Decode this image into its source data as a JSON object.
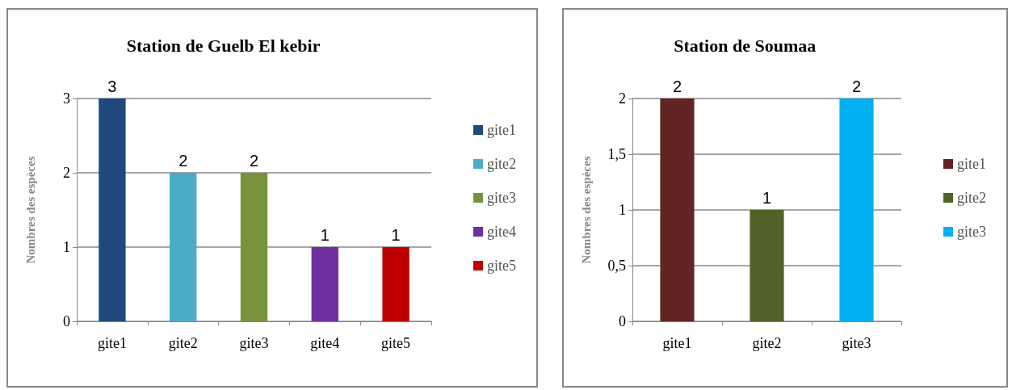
{
  "chart_data": [
    {
      "type": "bar",
      "title": "Station de Guelb El kebir",
      "ylabel": "Nombres des espèces",
      "categories": [
        "gite1",
        "gite2",
        "gite3",
        "gite4",
        "gite5"
      ],
      "series": [
        {
          "name": "gite1",
          "color": "#1f497d",
          "values": [
            3,
            null,
            null,
            null,
            null
          ]
        },
        {
          "name": "gite2",
          "color": "#4bacc6",
          "values": [
            null,
            2,
            null,
            null,
            null
          ]
        },
        {
          "name": "gite3",
          "color": "#77933c",
          "values": [
            null,
            null,
            2,
            null,
            null
          ]
        },
        {
          "name": "gite4",
          "color": "#7030a0",
          "values": [
            null,
            null,
            null,
            1,
            null
          ]
        },
        {
          "name": "gite5",
          "color": "#c00000",
          "values": [
            null,
            null,
            null,
            null,
            1
          ]
        }
      ],
      "ylim": [
        0,
        3
      ],
      "yticks": [
        0,
        1,
        2,
        3
      ],
      "grid": "y",
      "legend": "right",
      "data_labels": true
    },
    {
      "type": "bar",
      "title": "Station de Soumaa",
      "ylabel": "Nombres des espèces",
      "categories": [
        "gite1",
        "gite2",
        "gite3"
      ],
      "series": [
        {
          "name": "gite1",
          "color": "#632523",
          "values": [
            2,
            null,
            null
          ]
        },
        {
          "name": "gite2",
          "color": "#4f6228",
          "values": [
            null,
            1,
            null
          ]
        },
        {
          "name": "gite3",
          "color": "#00b0f0",
          "values": [
            null,
            null,
            2
          ]
        }
      ],
      "ylim": [
        0,
        2
      ],
      "yticks": [
        0,
        {
          "value": 0.5,
          "label": "0,5"
        },
        1,
        {
          "value": 1.5,
          "label": "1,5"
        },
        2
      ],
      "grid": "y",
      "legend": "right",
      "data_labels": true
    }
  ]
}
